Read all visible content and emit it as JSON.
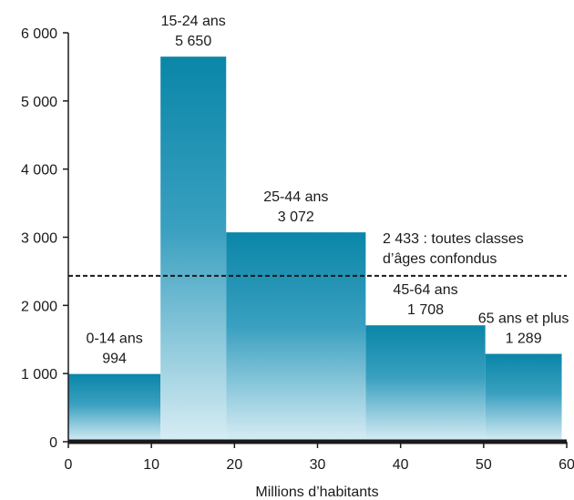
{
  "chart_data": {
    "type": "bar",
    "subtype": "variable-width histogram",
    "xlabel": "Millions d’habitants",
    "ylabel": "",
    "xlim": [
      0,
      60
    ],
    "ylim": [
      0,
      6000
    ],
    "x_ticks": [
      0,
      10,
      20,
      30,
      40,
      50,
      60
    ],
    "x_tick_labels": [
      "0",
      "10",
      "20",
      "30",
      "40",
      "50",
      "60"
    ],
    "y_ticks": [
      0,
      1000,
      2000,
      3000,
      4000,
      5000,
      6000
    ],
    "y_tick_labels": [
      "0",
      "1 000",
      "2 000",
      "3 000",
      "4 000",
      "5 000",
      "6 000"
    ],
    "bars": [
      {
        "category": "0-14 ans",
        "x_start": 0,
        "x_end": 11.1,
        "value": 994,
        "value_label": "994"
      },
      {
        "category": "15-24 ans",
        "x_start": 11.1,
        "x_end": 19,
        "value": 5650,
        "value_label": "5 650"
      },
      {
        "category": "25-44 ans",
        "x_start": 19,
        "x_end": 35.8,
        "value": 3072,
        "value_label": "3 072"
      },
      {
        "category": "45-64 ans",
        "x_start": 35.8,
        "x_end": 50.2,
        "value": 1708,
        "value_label": "1 708"
      },
      {
        "category": "65 ans et plus",
        "x_start": 50.2,
        "x_end": 59.4,
        "value": 1289,
        "value_label": "1 289"
      }
    ],
    "reference_line": {
      "value": 2433,
      "label_lines": [
        "2 433 : toutes classes",
        "d’âges confondus"
      ]
    },
    "grid": false,
    "colors": {
      "bar_top": "#0a86a8",
      "bar_bottom": "#d8edf4",
      "text": "#1a1a1a"
    }
  }
}
